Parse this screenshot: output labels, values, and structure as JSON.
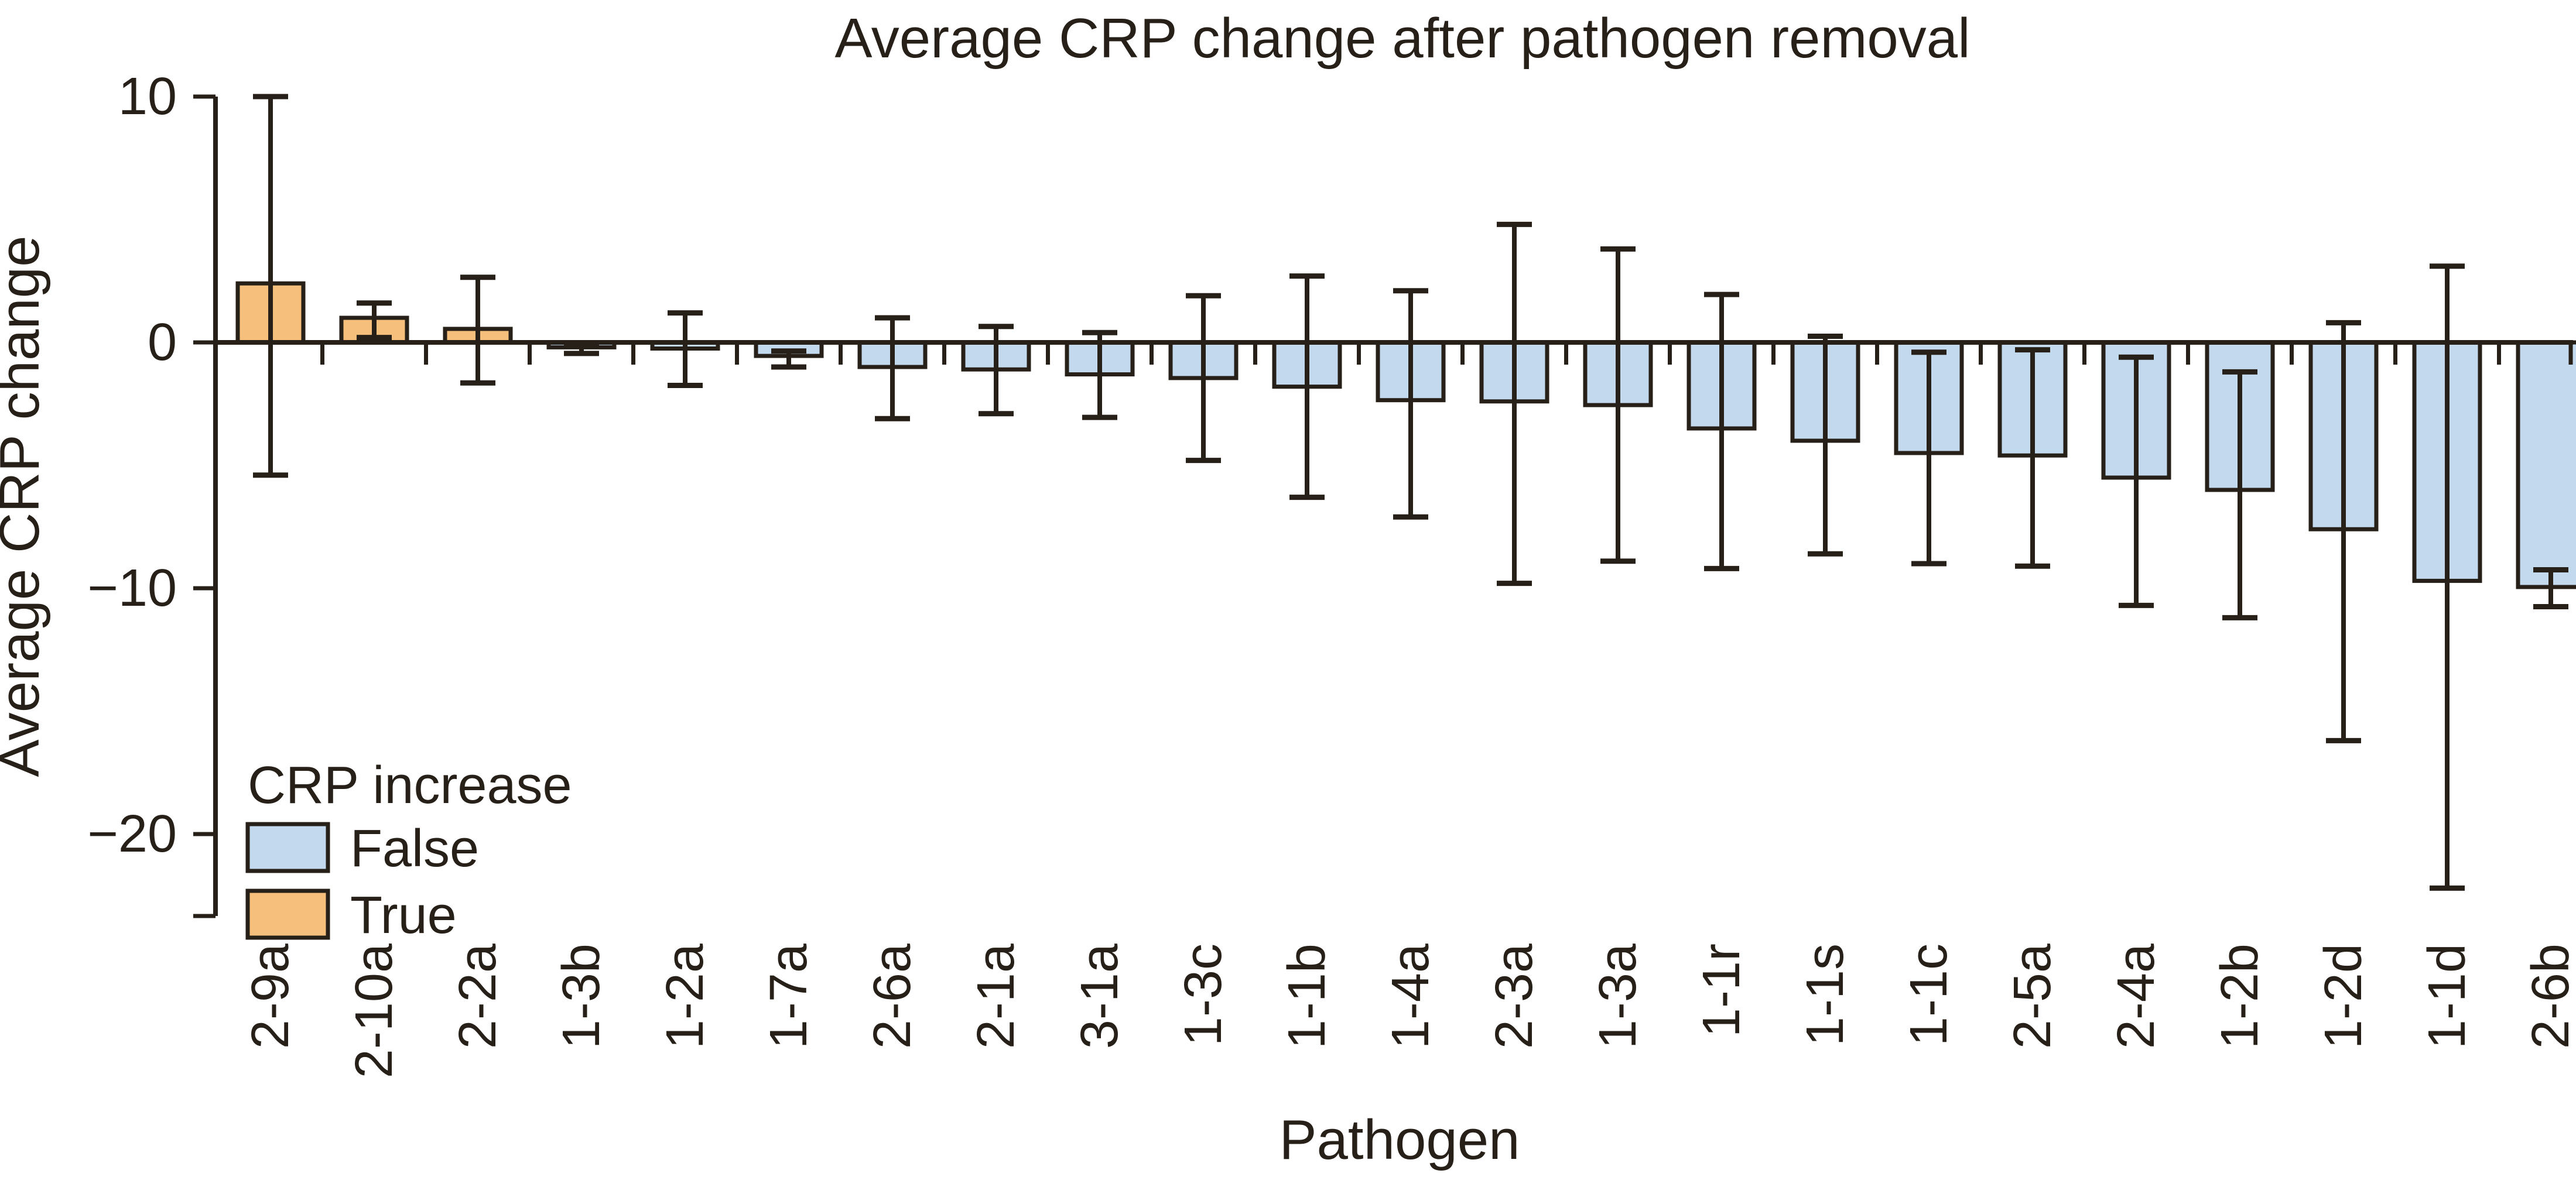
{
  "figure": {
    "background": "#ffffff",
    "line_color": "#272019"
  },
  "legend": {
    "title": "CRP increase",
    "entries": [
      {
        "label": "False",
        "color": "#c3d9ee"
      },
      {
        "label": "True",
        "color": "#f6c07c"
      }
    ]
  },
  "chart_data": {
    "type": "bar",
    "title": "Average CRP change after pathogen removal",
    "xlabel": "Pathogen",
    "ylabel": "Average CRP change",
    "ylim": [
      -23.3,
      10.5
    ],
    "yticks": [
      10,
      0,
      -10,
      -20
    ],
    "ytick_labels": [
      "10",
      "0",
      "−10",
      "−20"
    ],
    "grid": false,
    "legend_position": "lower left",
    "colors": {
      "False": "#c3d9ee",
      "True": "#f6c07c",
      "edge": "#272019"
    },
    "categories": [
      "2-9a",
      "2-10a",
      "2-2a",
      "1-3b",
      "1-2a",
      "1-7a",
      "2-6a",
      "2-1a",
      "3-1a",
      "1-3c",
      "1-1b",
      "1-4a",
      "2-3a",
      "1-3a",
      "1-1r",
      "1-1s",
      "1-1c",
      "2-5a",
      "2-4a",
      "1-2b",
      "1-2d",
      "1-1d",
      "2-6b"
    ],
    "bars": [
      {
        "pathogen": "2-9a",
        "value": 2.4,
        "err_lo": -5.4,
        "err_hi": 10.0,
        "crp_increase": true
      },
      {
        "pathogen": "2-10a",
        "value": 1.0,
        "err_lo": 0.2,
        "err_hi": 1.6,
        "crp_increase": true
      },
      {
        "pathogen": "2-2a",
        "value": 0.55,
        "err_lo": -1.65,
        "err_hi": 2.65,
        "crp_increase": true
      },
      {
        "pathogen": "1-3b",
        "value": -0.2,
        "err_lo": -0.45,
        "err_hi": -0.05,
        "crp_increase": false
      },
      {
        "pathogen": "1-2a",
        "value": -0.25,
        "err_lo": -1.75,
        "err_hi": 1.2,
        "crp_increase": false
      },
      {
        "pathogen": "1-7a",
        "value": -0.55,
        "err_lo": -1.0,
        "err_hi": -0.35,
        "crp_increase": false
      },
      {
        "pathogen": "2-6a",
        "value": -1.0,
        "err_lo": -3.1,
        "err_hi": 1.0,
        "crp_increase": false
      },
      {
        "pathogen": "2-1a",
        "value": -1.1,
        "err_lo": -2.9,
        "err_hi": 0.65,
        "crp_increase": false
      },
      {
        "pathogen": "3-1a",
        "value": -1.3,
        "err_lo": -3.05,
        "err_hi": 0.4,
        "crp_increase": false
      },
      {
        "pathogen": "1-3c",
        "value": -1.45,
        "err_lo": -4.8,
        "err_hi": 1.9,
        "crp_increase": false
      },
      {
        "pathogen": "1-1b",
        "value": -1.8,
        "err_lo": -6.3,
        "err_hi": 2.7,
        "crp_increase": false
      },
      {
        "pathogen": "1-4a",
        "value": -2.35,
        "err_lo": -7.1,
        "err_hi": 2.1,
        "crp_increase": false
      },
      {
        "pathogen": "2-3a",
        "value": -2.4,
        "err_lo": -9.8,
        "err_hi": 4.8,
        "crp_increase": false
      },
      {
        "pathogen": "1-3a",
        "value": -2.55,
        "err_lo": -8.9,
        "err_hi": 3.8,
        "crp_increase": false
      },
      {
        "pathogen": "1-1r",
        "value": -3.5,
        "err_lo": -9.2,
        "err_hi": 1.95,
        "crp_increase": false
      },
      {
        "pathogen": "1-1s",
        "value": -4.0,
        "err_lo": -8.6,
        "err_hi": 0.25,
        "crp_increase": false
      },
      {
        "pathogen": "1-1c",
        "value": -4.5,
        "err_lo": -9.0,
        "err_hi": -0.4,
        "crp_increase": false
      },
      {
        "pathogen": "2-5a",
        "value": -4.6,
        "err_lo": -9.1,
        "err_hi": -0.3,
        "crp_increase": false
      },
      {
        "pathogen": "2-4a",
        "value": -5.5,
        "err_lo": -10.7,
        "err_hi": -0.6,
        "crp_increase": false
      },
      {
        "pathogen": "1-2b",
        "value": -6.0,
        "err_lo": -11.2,
        "err_hi": -1.2,
        "crp_increase": false
      },
      {
        "pathogen": "1-2d",
        "value": -7.6,
        "err_lo": -16.2,
        "err_hi": 0.8,
        "crp_increase": false
      },
      {
        "pathogen": "1-1d",
        "value": -9.7,
        "err_lo": -22.2,
        "err_hi": 3.1,
        "crp_increase": false
      },
      {
        "pathogen": "2-6b",
        "value": -9.95,
        "err_lo": -10.75,
        "err_hi": -9.25,
        "crp_increase": false
      }
    ]
  }
}
